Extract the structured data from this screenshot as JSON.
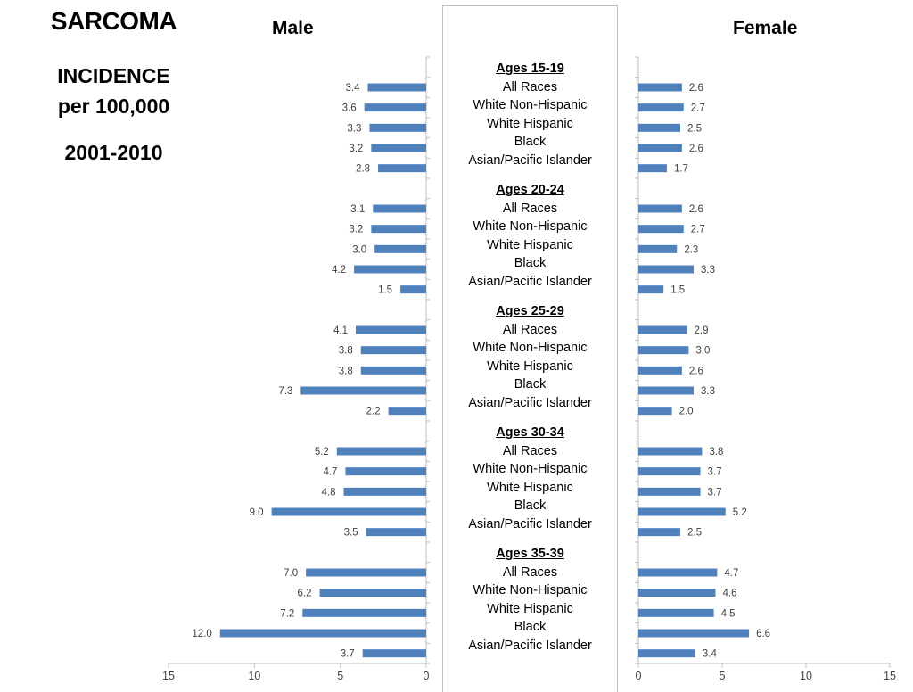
{
  "slide": {
    "title": "SARCOMA",
    "subtitle_line1": "INCIDENCE",
    "subtitle_line2": "per 100,000",
    "period": "2001-2010"
  },
  "chart_data": {
    "type": "bar",
    "orientation": "horizontal",
    "title": "SARCOMA INCIDENCE per 100,000, 2001-2010",
    "bar_color": "#4f81bd",
    "groups": [
      {
        "label": "Ages 15-19",
        "categories": [
          "All Races",
          "White Non-Hispanic",
          "White Hispanic",
          "Black",
          "Asian/Pacific Islander"
        ],
        "male": [
          3.4,
          3.6,
          3.3,
          3.2,
          2.8
        ],
        "female": [
          2.6,
          2.7,
          2.5,
          2.6,
          1.7
        ]
      },
      {
        "label": "Ages 20-24",
        "categories": [
          "All Races",
          "White Non-Hispanic",
          "White Hispanic",
          "Black",
          "Asian/Pacific Islander"
        ],
        "male": [
          3.1,
          3.2,
          3.0,
          4.2,
          1.5
        ],
        "female": [
          2.6,
          2.7,
          2.3,
          3.3,
          1.5
        ]
      },
      {
        "label": "Ages 25-29",
        "categories": [
          "All Races",
          "White Non-Hispanic",
          "White Hispanic",
          "Black",
          "Asian/Pacific Islander"
        ],
        "male": [
          4.1,
          3.8,
          3.8,
          7.3,
          2.2
        ],
        "female": [
          2.9,
          3.0,
          2.6,
          3.3,
          2.0
        ]
      },
      {
        "label": "Ages 30-34",
        "categories": [
          "All Races",
          "White Non-Hispanic",
          "White  Hispanic",
          "Black",
          "Asian/Pacific Islander"
        ],
        "male": [
          5.2,
          4.7,
          4.8,
          9.0,
          3.5
        ],
        "female": [
          3.8,
          3.7,
          3.7,
          5.2,
          2.5
        ]
      },
      {
        "label": "Ages 35-39",
        "categories": [
          "All Races",
          "White Non-Hispanic",
          "White Hispanic",
          "Black",
          "Asian/Pacific Islander"
        ],
        "male": [
          7.0,
          6.2,
          7.2,
          12.0,
          3.7
        ],
        "female": [
          4.7,
          4.6,
          4.5,
          6.6,
          3.4
        ]
      }
    ],
    "panels": [
      {
        "name": "Male",
        "direction": "reversed",
        "xlim": [
          0,
          15
        ],
        "ticks": [
          "15",
          "10",
          "5",
          "0"
        ]
      },
      {
        "name": "Female",
        "direction": "normal",
        "xlim": [
          0,
          15
        ],
        "ticks": [
          "0",
          "5",
          "10",
          "15"
        ]
      }
    ],
    "xlabel": "",
    "ylabel": "",
    "grid": false,
    "legend": "none"
  }
}
